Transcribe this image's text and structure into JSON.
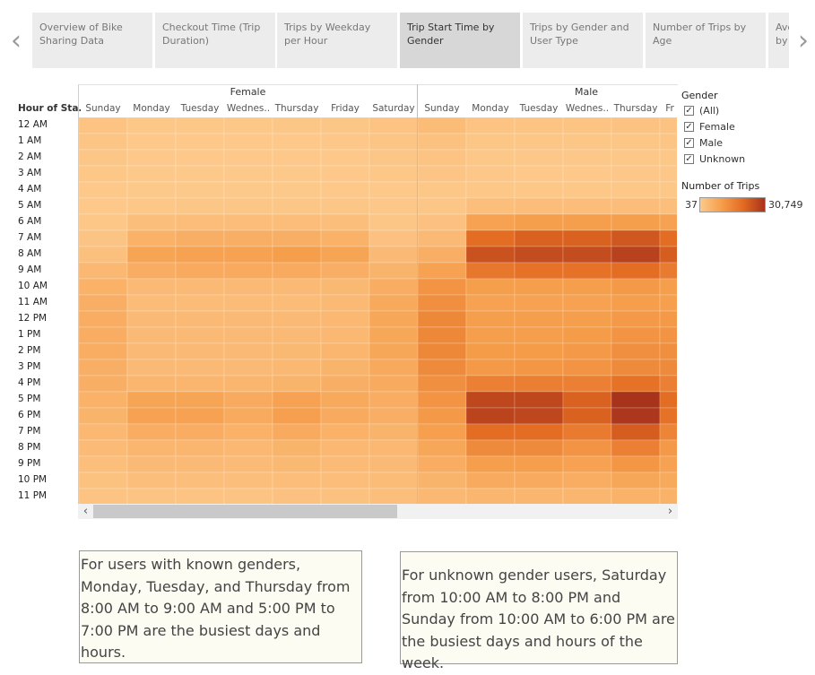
{
  "nav": {
    "prev_arrow": "‹",
    "next_arrow": "›",
    "tabs": [
      {
        "label": "Overview of Bike Sharing Data"
      },
      {
        "label": "Checkout Time (Trip Duration)"
      },
      {
        "label": "Trips by Weekday per Hour"
      },
      {
        "label": "Trip Start Time by Gender",
        "active": true
      },
      {
        "label": "Trips by Gender and User Type"
      },
      {
        "label": "Number of Trips by Age"
      },
      {
        "label": "Ave by"
      }
    ]
  },
  "heatmap": {
    "row_axis_title": "Hour of Sta..",
    "genders": [
      "Female",
      "Male"
    ],
    "days": [
      "Sunday",
      "Monday",
      "Tuesday",
      "Wednes..",
      "Thursday",
      "Friday",
      "Saturday"
    ],
    "visible_male_day_count_partial": "Fr",
    "hours": [
      "12 AM",
      "1 AM",
      "2 AM",
      "3 AM",
      "4 AM",
      "5 AM",
      "6 AM",
      "7 AM",
      "8 AM",
      "9 AM",
      "10 AM",
      "11 AM",
      "12 PM",
      "1 PM",
      "2 PM",
      "3 PM",
      "4 PM",
      "5 PM",
      "6 PM",
      "7 PM",
      "8 PM",
      "9 PM",
      "10 PM",
      "11 PM"
    ]
  },
  "chart_data": {
    "type": "heatmap",
    "title": "",
    "xlabel": "",
    "ylabel": "Hour of Sta..",
    "color_metric": "Number of Trips",
    "color_range": [
      37,
      30749
    ],
    "columns": [
      "Female Sunday",
      "Female Monday",
      "Female Tuesday",
      "Female Wednesday",
      "Female Thursday",
      "Female Friday",
      "Female Saturday",
      "Male Sunday",
      "Male Monday",
      "Male Tuesday",
      "Male Wednesday",
      "Male Thursday",
      "Male Friday"
    ],
    "rows": [
      "12 AM",
      "1 AM",
      "2 AM",
      "3 AM",
      "4 AM",
      "5 AM",
      "6 AM",
      "7 AM",
      "8 AM",
      "9 AM",
      "10 AM",
      "11 AM",
      "12 PM",
      "1 PM",
      "2 PM",
      "3 PM",
      "4 PM",
      "5 PM",
      "6 PM",
      "7 PM",
      "8 PM",
      "9 PM",
      "10 PM",
      "11 PM"
    ],
    "values": [
      [
        1500,
        600,
        500,
        500,
        700,
        700,
        1500,
        3000,
        1500,
        1300,
        1300,
        1600,
        1600
      ],
      [
        1000,
        300,
        300,
        300,
        300,
        400,
        1000,
        2000,
        800,
        700,
        700,
        800,
        900
      ],
      [
        700,
        200,
        200,
        200,
        200,
        300,
        800,
        1500,
        500,
        400,
        400,
        500,
        600
      ],
      [
        500,
        150,
        150,
        150,
        150,
        200,
        500,
        1000,
        400,
        300,
        300,
        400,
        400
      ],
      [
        300,
        150,
        150,
        150,
        150,
        200,
        300,
        600,
        500,
        500,
        500,
        500,
        500
      ],
      [
        300,
        600,
        700,
        700,
        700,
        700,
        400,
        800,
        2500,
        2800,
        2800,
        2800,
        2600
      ],
      [
        600,
        2500,
        2800,
        2800,
        2800,
        2600,
        800,
        1800,
        9000,
        10000,
        10000,
        10000,
        9000
      ],
      [
        1200,
        5500,
        6000,
        6000,
        6000,
        5500,
        1800,
        3500,
        20000,
        22000,
        22000,
        24000,
        20000
      ],
      [
        2200,
        8500,
        9000,
        9000,
        10000,
        8500,
        3500,
        6000,
        25000,
        26000,
        26000,
        28000,
        23000
      ],
      [
        4000,
        6500,
        7000,
        7000,
        7000,
        6000,
        5000,
        9000,
        18000,
        19000,
        19000,
        20000,
        17000
      ],
      [
        5500,
        3500,
        3500,
        3500,
        3500,
        3800,
        6500,
        12000,
        10000,
        10000,
        10000,
        11000,
        10000
      ],
      [
        6000,
        3000,
        3000,
        3000,
        3000,
        3500,
        7500,
        13000,
        9000,
        9000,
        9000,
        10000,
        9500
      ],
      [
        6500,
        3500,
        3500,
        3500,
        3500,
        4000,
        8000,
        14500,
        10000,
        10000,
        10000,
        11000,
        11000
      ],
      [
        6500,
        3500,
        3500,
        3500,
        3500,
        4000,
        8000,
        14500,
        10000,
        10000,
        10500,
        12000,
        12000
      ],
      [
        6500,
        3500,
        3500,
        3500,
        3800,
        4500,
        8000,
        14500,
        10500,
        10500,
        11000,
        13000,
        13000
      ],
      [
        6000,
        3500,
        3500,
        3500,
        4000,
        5000,
        7500,
        14000,
        11000,
        11500,
        12000,
        14000,
        14000
      ],
      [
        6000,
        4500,
        4500,
        4500,
        5000,
        6000,
        7000,
        13000,
        16000,
        16500,
        16000,
        19000,
        16000
      ],
      [
        5500,
        8500,
        8500,
        7000,
        9000,
        7500,
        6500,
        12000,
        27000,
        27000,
        22000,
        30749,
        20000
      ],
      [
        5000,
        9000,
        9000,
        7000,
        9500,
        7000,
        6000,
        11000,
        27500,
        27000,
        22000,
        30000,
        19000
      ],
      [
        4000,
        6500,
        6500,
        5500,
        7000,
        5500,
        5000,
        9500,
        20000,
        20000,
        17000,
        23000,
        15000
      ],
      [
        3200,
        4500,
        4500,
        4000,
        5000,
        4000,
        4000,
        8000,
        14000,
        14000,
        12000,
        16000,
        11000
      ],
      [
        2500,
        3500,
        3500,
        3200,
        3800,
        3200,
        3500,
        6500,
        10000,
        10000,
        9000,
        11500,
        9000
      ],
      [
        2000,
        2500,
        2500,
        2500,
        2800,
        2800,
        3000,
        5000,
        7000,
        7000,
        6500,
        8000,
        7500
      ],
      [
        1500,
        1500,
        1500,
        1500,
        1800,
        2000,
        2500,
        4000,
        4500,
        4500,
        4500,
        5500,
        5500
      ]
    ]
  },
  "legend": {
    "gender_title": "Gender",
    "gender_items": [
      {
        "label": "(All)",
        "checked": true
      },
      {
        "label": "Female",
        "checked": true
      },
      {
        "label": "Male",
        "checked": true
      },
      {
        "label": "Unknown",
        "checked": true
      }
    ],
    "color_title": "Number of Trips",
    "min_label": "37",
    "max_label": "30,749",
    "colors": [
      "#fdc98b",
      "#f59d4a",
      "#e36a22",
      "#a8331b"
    ]
  },
  "scroll": {
    "left_arrow": "‹",
    "right_arrow": "›"
  },
  "annotations": {
    "left": "For users with known genders, Monday, Tuesday, and Thursday from 8:00 AM to 9:00 AM and 5:00 PM to 7:00 PM are the busiest days and hours.",
    "right": "For unknown gender users, Saturday from 10:00 AM to 8:00 PM and Sunday from 10:00 AM to 6:00 PM are the busiest days and hours of the week."
  }
}
